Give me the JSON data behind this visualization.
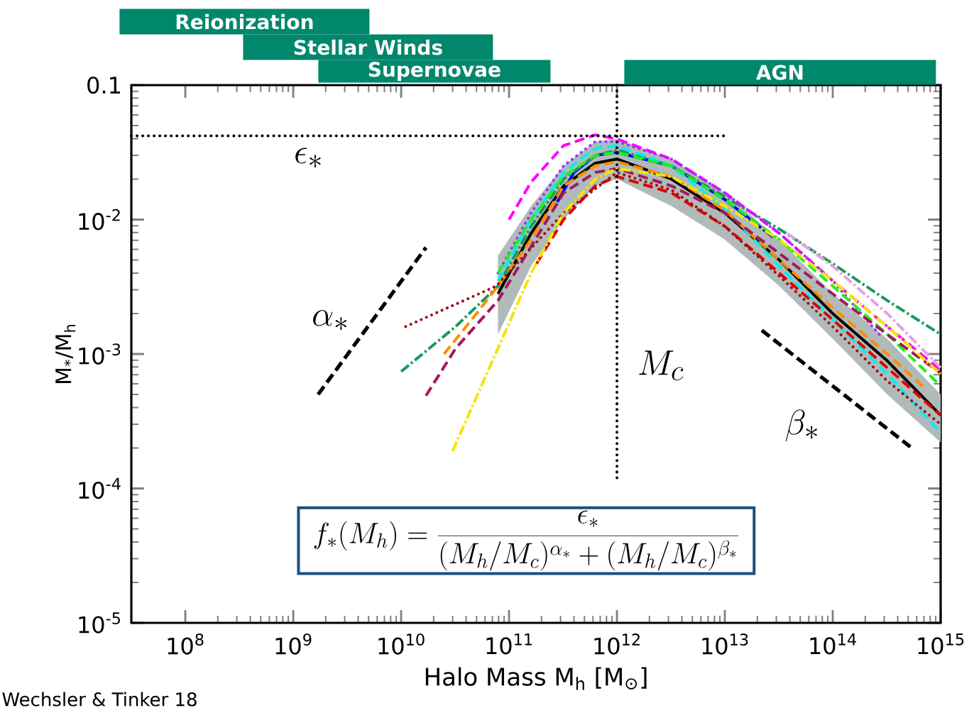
{
  "chart_data": {
    "type": "line",
    "xlabel": "Halo Mass M$_{h}$ [M$_{⊙}$]",
    "ylabel": "M$_{*}$/M$_{h}$",
    "log": "xy",
    "marker": "none",
    "xlim": [
      31600000.0,
      1000000000000000.0
    ],
    "ylim": [
      1e-05,
      0.1
    ],
    "xticks": [
      {
        "value": 100000000.0,
        "label": "10$^{8}$"
      },
      {
        "value": 1000000000.0,
        "label": "10$^{9}$"
      },
      {
        "value": 10000000000.0,
        "label": "10$^{10}$"
      },
      {
        "value": 100000000000.0,
        "label": "10$^{11}$"
      },
      {
        "value": 1000000000000.0,
        "label": "10$^{12}$"
      },
      {
        "value": 10000000000000.0,
        "label": "10$^{13}$"
      },
      {
        "value": 100000000000000.0,
        "label": "10$^{14}$"
      },
      {
        "value": 1000000000000000.0,
        "label": "10$^{15}$"
      }
    ],
    "yticks": [
      {
        "value": 1e-05,
        "label": "10$^{-5}$"
      },
      {
        "value": 0.0001,
        "label": "10$^{-4}$"
      },
      {
        "value": 0.001,
        "label": "10$^{-3}$"
      },
      {
        "value": 0.01,
        "label": "10$^{-2}$"
      },
      0.1
    ],
    "series": [
      {
        "color": "#000000",
        "line_style": "solid",
        "x": [
          79000000000.0,
          160000000000.0,
          320000000000.0,
          630000000000.0,
          1000000000000.0,
          3200000000000.0,
          10000000000000.0,
          32000000000000.0,
          100000000000000.0,
          320000000000000.0,
          1000000000000000.0
        ],
        "values": [
          0.0028,
          0.0079,
          0.0178,
          0.0263,
          0.0282,
          0.02,
          0.0112,
          0.005,
          0.002,
          0.00089,
          0.00035
        ],
        "upper": [
          0.0054,
          0.0126,
          0.0251,
          0.038,
          0.0398,
          0.0282,
          0.0158,
          0.0071,
          0.0028,
          0.0013,
          0.0005
        ],
        "lower": [
          0.0014,
          0.0045,
          0.01,
          0.0178,
          0.02,
          0.0126,
          0.0071,
          0.0032,
          0.0013,
          0.0005,
          0.00022
        ]
      },
      {
        "color": "#0000ee",
        "line_style": "solid",
        "x": [
          280000000000.0,
          400000000000.0,
          630000000000.0,
          1000000000000.0,
          3200000000000.0,
          10000000000000.0,
          28000000000000.0
        ],
        "values": [
          0.0135,
          0.0224,
          0.03,
          0.0316,
          0.0251,
          0.0141,
          0.0074
        ]
      },
      {
        "color": "#1a9a5a",
        "line_style": "dashdot",
        "x": [
          10000000000.0,
          32000000000.0,
          79000000000.0,
          160000000000.0,
          320000000000.0,
          630000000000.0,
          1000000000000.0,
          3200000000000.0,
          10000000000000.0,
          32000000000000.0,
          100000000000000.0,
          320000000000000.0,
          1000000000000000.0
        ],
        "values": [
          0.00074,
          0.0016,
          0.0032,
          0.0089,
          0.02,
          0.03,
          0.033,
          0.0251,
          0.0148,
          0.0085,
          0.0047,
          0.0025,
          0.0014
        ]
      },
      {
        "color": "#ff00ff",
        "line_style": "dashed",
        "x": [
          100000000000.0,
          160000000000.0,
          320000000000.0,
          630000000000.0,
          1000000000000.0,
          3200000000000.0,
          10000000000000.0,
          32000000000000.0,
          100000000000000.0,
          320000000000000.0,
          1000000000000000.0
        ],
        "values": [
          0.01,
          0.019,
          0.0355,
          0.0427,
          0.0398,
          0.0282,
          0.0158,
          0.0079,
          0.0035,
          0.0016,
          0.00076
        ]
      },
      {
        "color": "#9b30ff",
        "line_style": "dotted",
        "x": [
          79000000000.0,
          160000000000.0,
          320000000000.0,
          630000000000.0,
          1000000000000.0,
          3200000000000.0,
          10000000000000.0,
          32000000000000.0,
          100000000000000.0,
          270000000000000.0
        ],
        "values": [
          0.004,
          0.0112,
          0.0251,
          0.038,
          0.038,
          0.0282,
          0.0158,
          0.0079,
          0.0035,
          0.0014
        ]
      },
      {
        "color": "#00eeee",
        "line_style": "dashed",
        "x": [
          79000000000.0,
          160000000000.0,
          320000000000.0,
          630000000000.0,
          1000000000000.0,
          3200000000000.0,
          10000000000000.0,
          32000000000000.0,
          100000000000000.0,
          320000000000000.0,
          1000000000000000.0
        ],
        "values": [
          0.0035,
          0.01,
          0.0224,
          0.0339,
          0.0355,
          0.0251,
          0.012,
          0.0045,
          0.0018,
          0.00071,
          0.00026
        ]
      },
      {
        "color": "#22ee22",
        "line_style": "dashed",
        "x": [
          79000000000.0,
          160000000000.0,
          320000000000.0,
          630000000000.0,
          1000000000000.0,
          3200000000000.0,
          10000000000000.0,
          32000000000000.0,
          100000000000000.0,
          320000000000000.0,
          1000000000000000.0
        ],
        "values": [
          0.004,
          0.01,
          0.0209,
          0.03,
          0.0316,
          0.0251,
          0.0141,
          0.0071,
          0.0032,
          0.0014,
          0.00058
        ]
      },
      {
        "color": "#ff8c00",
        "line_style": "dashed",
        "x": [
          25000000000.0,
          50000000000.0,
          79000000000.0,
          160000000000.0,
          320000000000.0,
          630000000000.0,
          1000000000000.0,
          3200000000000.0,
          10000000000000.0,
          32000000000000.0,
          100000000000000.0,
          320000000000000.0,
          710000000000000.0
        ],
        "values": [
          0.001,
          0.002,
          0.0032,
          0.0071,
          0.0178,
          0.0251,
          0.0269,
          0.0209,
          0.0117,
          0.005,
          0.0022,
          0.001,
          0.00056
        ]
      },
      {
        "color": "#e00000",
        "line_style": "dashed",
        "x": [
          180000000000.0,
          320000000000.0,
          630000000000.0,
          1000000000000.0,
          3200000000000.0,
          10000000000000.0,
          32000000000000.0,
          100000000000000.0,
          320000000000000.0,
          1000000000000000.0
        ],
        "values": [
          0.0047,
          0.01,
          0.0178,
          0.0209,
          0.0158,
          0.0089,
          0.004,
          0.0018,
          0.00079,
          0.00035
        ]
      },
      {
        "color": "#a3195b",
        "line_style": "dashed",
        "x": [
          17000000000.0,
          32000000000.0,
          79000000000.0,
          160000000000.0,
          320000000000.0,
          630000000000.0,
          1000000000000.0,
          3200000000000.0,
          10000000000000.0,
          32000000000000.0,
          100000000000000.0,
          320000000000000.0,
          1000000000000000.0
        ],
        "values": [
          0.00049,
          0.0011,
          0.0025,
          0.0063,
          0.0158,
          0.0224,
          0.024,
          0.0178,
          0.0112,
          0.0056,
          0.0028,
          0.0014,
          0.00072
        ]
      },
      {
        "color": "#a01010",
        "line_style": "dotted",
        "x": [
          11000000000.0,
          76000000000.0,
          320000000000.0,
          1000000000000.0,
          3200000000000.0,
          10000000000000.0,
          32000000000000.0,
          100000000000000.0,
          320000000000000.0,
          1000000000000000.0
        ],
        "values": [
          0.0016,
          0.0032,
          0.0112,
          0.0224,
          0.0166,
          0.0089,
          0.0038,
          0.0016,
          0.00063,
          0.0003
        ]
      },
      {
        "color": "#f2e600",
        "line_style": "dashdot",
        "x": [
          30000000000.0,
          79000000000.0,
          160000000000.0,
          320000000000.0,
          630000000000.0,
          1000000000000.0,
          3200000000000.0,
          10000000000000.0,
          32000000000000.0,
          100000000000000.0,
          320000000000000.0,
          1000000000000000.0
        ],
        "values": [
          0.00019,
          0.0011,
          0.004,
          0.0112,
          0.02,
          0.024,
          0.0209,
          0.0126,
          0.0071,
          0.0035,
          0.0016,
          0.00071
        ]
      },
      {
        "color": "#e6a0e6",
        "line_style": "dashdot",
        "x": [
          38000000000000.0,
          100000000000000.0,
          320000000000000.0,
          1000000000000000.0
        ],
        "values": [
          0.0079,
          0.0045,
          0.002,
          0.00079
        ]
      },
      {
        "color": "#000000",
        "line_style": "dashed",
        "x": [
          1700000000.0,
          17000000000.0
        ],
        "values": [
          0.0005,
          0.0062
        ]
      },
      {
        "color": "#000000",
        "line_style": "dashed",
        "x": [
          22000000000000.0,
          540000000000000.0
        ],
        "values": [
          0.0015,
          0.0002
        ]
      },
      {
        "color": "#000000",
        "line_style": "dotted",
        "x": [
          31600000.0,
          10000000000000.0
        ],
        "values": [
          0.042,
          0.042
        ]
      },
      {
        "color": "#000000",
        "line_style": "dotted",
        "x": [
          1000000000000.0,
          1000000000000.0
        ],
        "values": [
          0.1,
          0.000115
        ]
      }
    ],
    "annotations": [
      "\\epsilon_*",
      "\\alpha_*",
      "M_c",
      "\\beta_*",
      "f_*(M_h) = \\frac{\\epsilon_*}{(M_h/M_c)^{\\alpha_*} + (M_h/M_c)^{\\beta_*}}",
      "Wechsler & Tinker 18",
      "Reionization",
      "Stellar Winds",
      "Supernovae",
      "AGN"
    ]
  }
}
